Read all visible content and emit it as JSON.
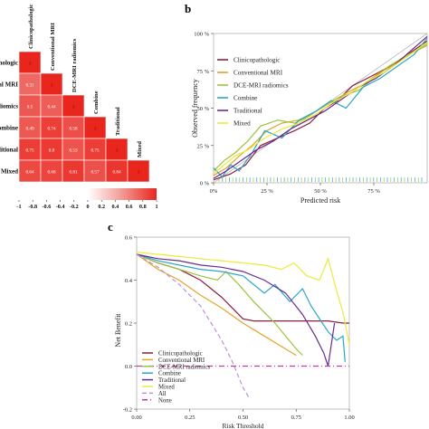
{
  "panels": {
    "b": "b",
    "c": "c"
  },
  "chart_data": [
    {
      "type": "heatmap",
      "row_labels": [
        "athologic",
        "nal MRI",
        "radiomics",
        "Combine",
        "aditional",
        "Mixed"
      ],
      "col_labels": [
        "Clinicopathologic",
        "Conventional MRI",
        "DCE-MRI radiomics",
        "Combine",
        "Traditional",
        "Mixed"
      ],
      "matrix": [
        [
          1
        ],
        [
          0.31,
          1
        ],
        [
          0.5,
          0.44,
          1
        ],
        [
          0.49,
          0.74,
          0.58,
          1
        ],
        [
          0.75,
          0.8,
          0.53,
          0.75,
          1
        ],
        [
          0.64,
          0.68,
          0.81,
          0.57,
          0.84,
          1
        ]
      ],
      "colorbar_ticks": [
        "-1",
        "-0.8",
        "-0.6",
        "-0.4",
        "-0.2",
        "0",
        "0.2",
        "0.4",
        "0.6",
        "0.8",
        "1"
      ],
      "colorbar_range": [
        -1,
        1
      ],
      "colors": {
        "low": "#ffffff",
        "high": "#e8261e"
      }
    },
    {
      "type": "line",
      "xlabel": "Predicted risk",
      "ylabel": "Observed frequency",
      "xlim": [
        0,
        100
      ],
      "ylim": [
        0,
        100
      ],
      "xticks": [
        "0%",
        "25 %",
        "50 %",
        "75 %"
      ],
      "yticks": [
        "0 %",
        "25 %",
        "50 %",
        "75 %",
        "100 %"
      ],
      "series": [
        {
          "name": "Clinicopathologic",
          "color": "#8b1f3f",
          "x": [
            0,
            8,
            15,
            22,
            30,
            38,
            45,
            52,
            58,
            65,
            72,
            80,
            88,
            95,
            100
          ],
          "y": [
            2,
            6,
            12,
            25,
            30,
            35,
            40,
            50,
            55,
            65,
            70,
            76,
            83,
            90,
            95
          ]
        },
        {
          "name": "Conventional MRI",
          "color": "#e3a528",
          "x": [
            0,
            6,
            12,
            18,
            25,
            32,
            40,
            48,
            55,
            62,
            70,
            78,
            86,
            94,
            100
          ],
          "y": [
            5,
            10,
            18,
            25,
            35,
            40,
            42,
            48,
            54,
            60,
            66,
            74,
            80,
            88,
            93
          ]
        },
        {
          "name": "DCE-MRI radiomics",
          "color": "#9cc43c",
          "x": [
            0,
            5,
            10,
            16,
            22,
            30,
            38,
            45,
            52,
            60,
            68,
            75,
            82,
            90,
            100
          ],
          "y": [
            8,
            15,
            20,
            28,
            38,
            42,
            40,
            45,
            52,
            58,
            62,
            70,
            78,
            85,
            92
          ]
        },
        {
          "name": "Combine",
          "color": "#2aa6c8",
          "x": [
            0,
            4,
            8,
            12,
            18,
            24,
            32,
            40,
            48,
            55,
            62,
            70,
            78,
            86,
            94,
            100
          ],
          "y": [
            10,
            4,
            12,
            8,
            20,
            35,
            30,
            42,
            48,
            55,
            50,
            64,
            70,
            78,
            86,
            97
          ]
        },
        {
          "name": "Traditional",
          "color": "#6a2c8c",
          "x": [
            0,
            6,
            12,
            20,
            28,
            36,
            44,
            52,
            60,
            68,
            76,
            84,
            92,
            100
          ],
          "y": [
            3,
            8,
            14,
            22,
            28,
            36,
            42,
            48,
            56,
            64,
            70,
            78,
            88,
            98
          ]
        },
        {
          "name": "Mixed",
          "color": "#ecea3c",
          "x": [
            0,
            5,
            10,
            16,
            24,
            32,
            40,
            48,
            56,
            64,
            72,
            80,
            88,
            96,
            100
          ],
          "y": [
            6,
            12,
            18,
            22,
            30,
            36,
            40,
            46,
            54,
            60,
            68,
            74,
            82,
            90,
            94
          ]
        }
      ],
      "rug": true
    },
    {
      "type": "line",
      "xlabel": "Risk Threshold",
      "ylabel": "Net Benefit",
      "xlim": [
        0,
        1
      ],
      "ylim": [
        -0.2,
        0.6
      ],
      "xticks": [
        "0.00",
        "0.25",
        "0.50",
        "0.75",
        "1.00"
      ],
      "yticks": [
        "-0.2",
        "0.0",
        "0.2",
        "0.4",
        "0.6"
      ],
      "series": [
        {
          "name": "Clinicopathologic",
          "color": "#8b1f3f",
          "dash": "",
          "x": [
            0,
            0.1,
            0.2,
            0.3,
            0.4,
            0.5,
            0.55,
            0.6,
            0.7,
            0.8,
            0.9,
            0.97,
            1.0
          ],
          "y": [
            0.52,
            0.48,
            0.45,
            0.4,
            0.32,
            0.22,
            0.21,
            0.21,
            0.21,
            0.21,
            0.21,
            0.2,
            0.2
          ]
        },
        {
          "name": "Conventional MRI",
          "color": "#e3a528",
          "dash": "",
          "x": [
            0,
            0.1,
            0.2,
            0.3,
            0.4,
            0.5,
            0.6,
            0.7,
            0.75
          ],
          "y": [
            0.52,
            0.45,
            0.4,
            0.33,
            0.27,
            0.2,
            0.14,
            0.08,
            0.05
          ]
        },
        {
          "name": "DCE-MRI radiomics",
          "color": "#9cc43c",
          "dash": "",
          "x": [
            0,
            0.1,
            0.2,
            0.3,
            0.38,
            0.42,
            0.48,
            0.55,
            0.6,
            0.65,
            0.7,
            0.75,
            0.78
          ],
          "y": [
            0.52,
            0.48,
            0.45,
            0.42,
            0.4,
            0.44,
            0.38,
            0.3,
            0.25,
            0.2,
            0.14,
            0.08,
            0.05
          ]
        },
        {
          "name": "Combine",
          "color": "#2aa6c8",
          "dash": "",
          "x": [
            0,
            0.1,
            0.2,
            0.3,
            0.4,
            0.5,
            0.6,
            0.65,
            0.72,
            0.78,
            0.82,
            0.86,
            0.9,
            0.94,
            0.97,
            0.98
          ],
          "y": [
            0.52,
            0.49,
            0.47,
            0.45,
            0.44,
            0.42,
            0.34,
            0.38,
            0.3,
            0.36,
            0.28,
            0.22,
            0.16,
            0.12,
            0.14,
            0.02
          ]
        },
        {
          "name": "Traditional",
          "color": "#6a2c8c",
          "dash": "",
          "x": [
            0,
            0.1,
            0.2,
            0.3,
            0.4,
            0.5,
            0.6,
            0.7,
            0.78,
            0.84,
            0.88,
            0.9,
            0.93
          ],
          "y": [
            0.52,
            0.5,
            0.49,
            0.47,
            0.46,
            0.44,
            0.4,
            0.34,
            0.24,
            0.14,
            0.06,
            0.0,
            0.2
          ]
        },
        {
          "name": "Mixed",
          "color": "#ecea3c",
          "dash": "",
          "x": [
            0,
            0.1,
            0.2,
            0.3,
            0.4,
            0.5,
            0.6,
            0.68,
            0.74,
            0.8,
            0.86,
            0.9,
            0.94,
            0.97,
            1.0
          ],
          "y": [
            0.53,
            0.52,
            0.51,
            0.5,
            0.49,
            0.48,
            0.47,
            0.45,
            0.48,
            0.42,
            0.4,
            0.5,
            0.35,
            0.25,
            0.1
          ]
        },
        {
          "name": "All",
          "color": "#c090d8",
          "dash": "5,3",
          "x": [
            0,
            0.1,
            0.2,
            0.3,
            0.35,
            0.4,
            0.45,
            0.5,
            0.53
          ],
          "y": [
            0.52,
            0.46,
            0.38,
            0.28,
            0.2,
            0.12,
            0.02,
            -0.1,
            -0.15
          ]
        },
        {
          "name": "None",
          "color": "#c03aa6",
          "dash": "6,3,1,3",
          "x": [
            0,
            1.0
          ],
          "y": [
            0,
            0
          ]
        }
      ]
    }
  ]
}
